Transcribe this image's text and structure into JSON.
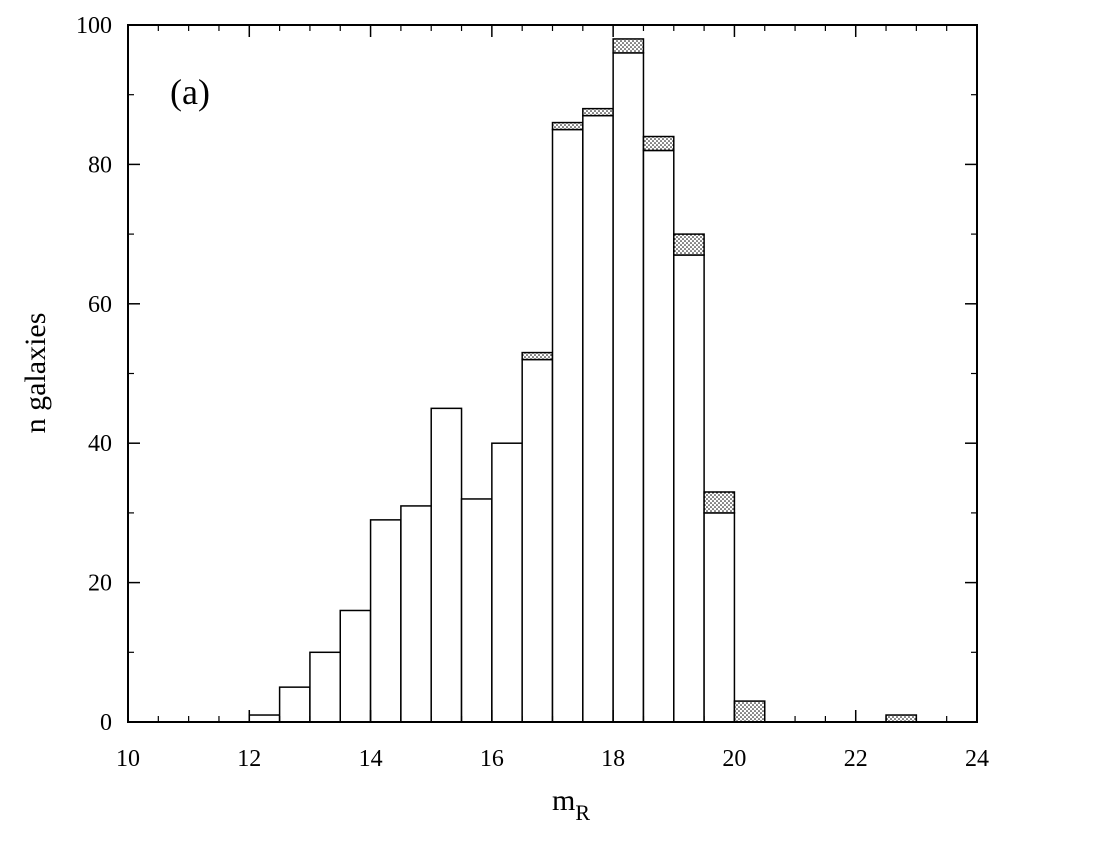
{
  "chart_data": {
    "type": "bar",
    "stacked": true,
    "panel_label": "(a)",
    "xlabel": "m",
    "xlabel_subscript": "R",
    "ylabel": "n galaxies",
    "xlim": [
      10,
      24
    ],
    "ylim": [
      0,
      100
    ],
    "x_ticks": [
      10,
      12,
      14,
      16,
      18,
      20,
      22,
      24
    ],
    "y_ticks": [
      0,
      20,
      40,
      60,
      80,
      100
    ],
    "x_minor_step": 0.5,
    "y_minor_step": 10,
    "bin_width": 0.5,
    "grid": false,
    "bins": [
      12.0,
      12.5,
      13.0,
      13.5,
      14.0,
      14.5,
      15.0,
      15.5,
      16.0,
      16.5,
      17.0,
      17.5,
      18.0,
      18.5,
      19.0,
      19.5,
      20.0,
      22.5
    ],
    "series": [
      {
        "fill": "#ffffff",
        "values": [
          1,
          5,
          10,
          16,
          29,
          31,
          45,
          32,
          40,
          52,
          85,
          87,
          96,
          82,
          67,
          30,
          0,
          0
        ]
      },
      {
        "fill": "dotted",
        "values": [
          0,
          0,
          0,
          0,
          0,
          0,
          0,
          0,
          0,
          1,
          1,
          1,
          2,
          2,
          3,
          3,
          3,
          1
        ]
      }
    ]
  }
}
